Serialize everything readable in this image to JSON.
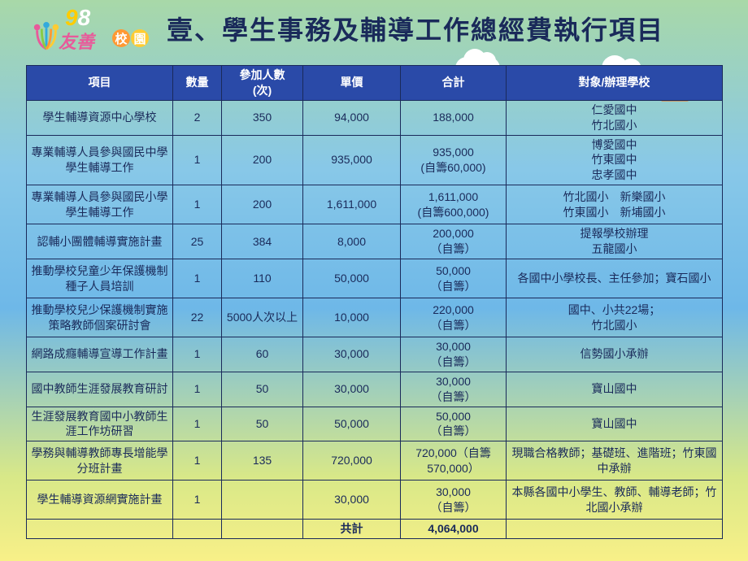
{
  "logo": {
    "num9": "9",
    "num8": "8",
    "friendly": "友善",
    "c1": "校",
    "c2": "園"
  },
  "title": "壹、學生事務及輔導工作總經費執行項目",
  "headers": {
    "item": "項目",
    "qty": "數量",
    "participants": "參加人數\n(次)",
    "unitPrice": "單價",
    "total": "合計",
    "school": "對象/辦理學校"
  },
  "rows": [
    {
      "item": "學生輔導資源中心學校",
      "qty": "2",
      "part": "350",
      "price": "94,000",
      "total": "188,000",
      "school": "仁愛國中\n竹北國小",
      "h": "h-med"
    },
    {
      "item": "專業輔導人員參與國民中學學生輔導工作",
      "qty": "1",
      "part": "200",
      "price": "935,000",
      "total": "935,000\n(自籌60,000)",
      "school": "博愛國中\n竹東國中\n忠孝國中",
      "h": "h-tall"
    },
    {
      "item": "專業輔導人員參與國民小學學生輔導工作",
      "qty": "1",
      "part": "200",
      "price": "1,611,000",
      "total": "1,611,000\n(自籌600,000)",
      "school": "竹北國小　新樂國小\n竹東國小　新埔國小",
      "h": "h-tall"
    },
    {
      "item": "認輔小團體輔導實施計畫",
      "qty": "25",
      "part": "384",
      "price": "8,000",
      "total": "200,000\n（自籌）",
      "school": "提報學校辦理\n五龍國小",
      "h": "h-med"
    },
    {
      "item": "推動學校兒童少年保護機制種子人員培訓",
      "qty": "1",
      "part": "110",
      "price": "50,000",
      "total": "50,000\n（自籌）",
      "school": "各國中小學校長、主任參加；寶石國小",
      "h": "h-tall"
    },
    {
      "item": "推動學校兒少保護機制實施策略教師個案研討會",
      "qty": "22",
      "part": "5000人次以上",
      "price": "10,000",
      "total": "220,000\n（自籌）",
      "school": "國中、小共22場；\n竹北國小",
      "h": "h-tall"
    },
    {
      "item": "網路成癮輔導宣導工作計畫",
      "qty": "1",
      "part": "60",
      "price": "30,000",
      "total": "30,000\n（自籌）",
      "school": "信勢國小承辦",
      "h": "h-sm"
    },
    {
      "item": "國中教師生涯發展教育研討",
      "qty": "1",
      "part": "50",
      "price": "30,000",
      "total": "30,000\n（自籌）",
      "school": "寶山國中",
      "h": "h-sm"
    },
    {
      "item": "生涯發展教育國中小教師生涯工作坊研習",
      "qty": "1",
      "part": "50",
      "price": "50,000",
      "total": "50,000\n（自籌）",
      "school": "寶山國中",
      "h": "h-med"
    },
    {
      "item": "學務與輔導教師專長增能學分班計畫",
      "qty": "1",
      "part": "135",
      "price": "720,000",
      "total": "720,000（自籌570,000）",
      "school": "現職合格教師；基礎班、進階班；竹東國中承辦",
      "h": "h-tall"
    },
    {
      "item": "學生輔導資源網實施計畫",
      "qty": "1",
      "part": "",
      "price": "30,000",
      "total": "30,000\n（自籌）",
      "school": "本縣各國中小學生、教師、輔導老師；竹北國小承辦",
      "h": "h-tall"
    }
  ],
  "totalRow": {
    "label": "共計",
    "value": "4,064,000"
  }
}
